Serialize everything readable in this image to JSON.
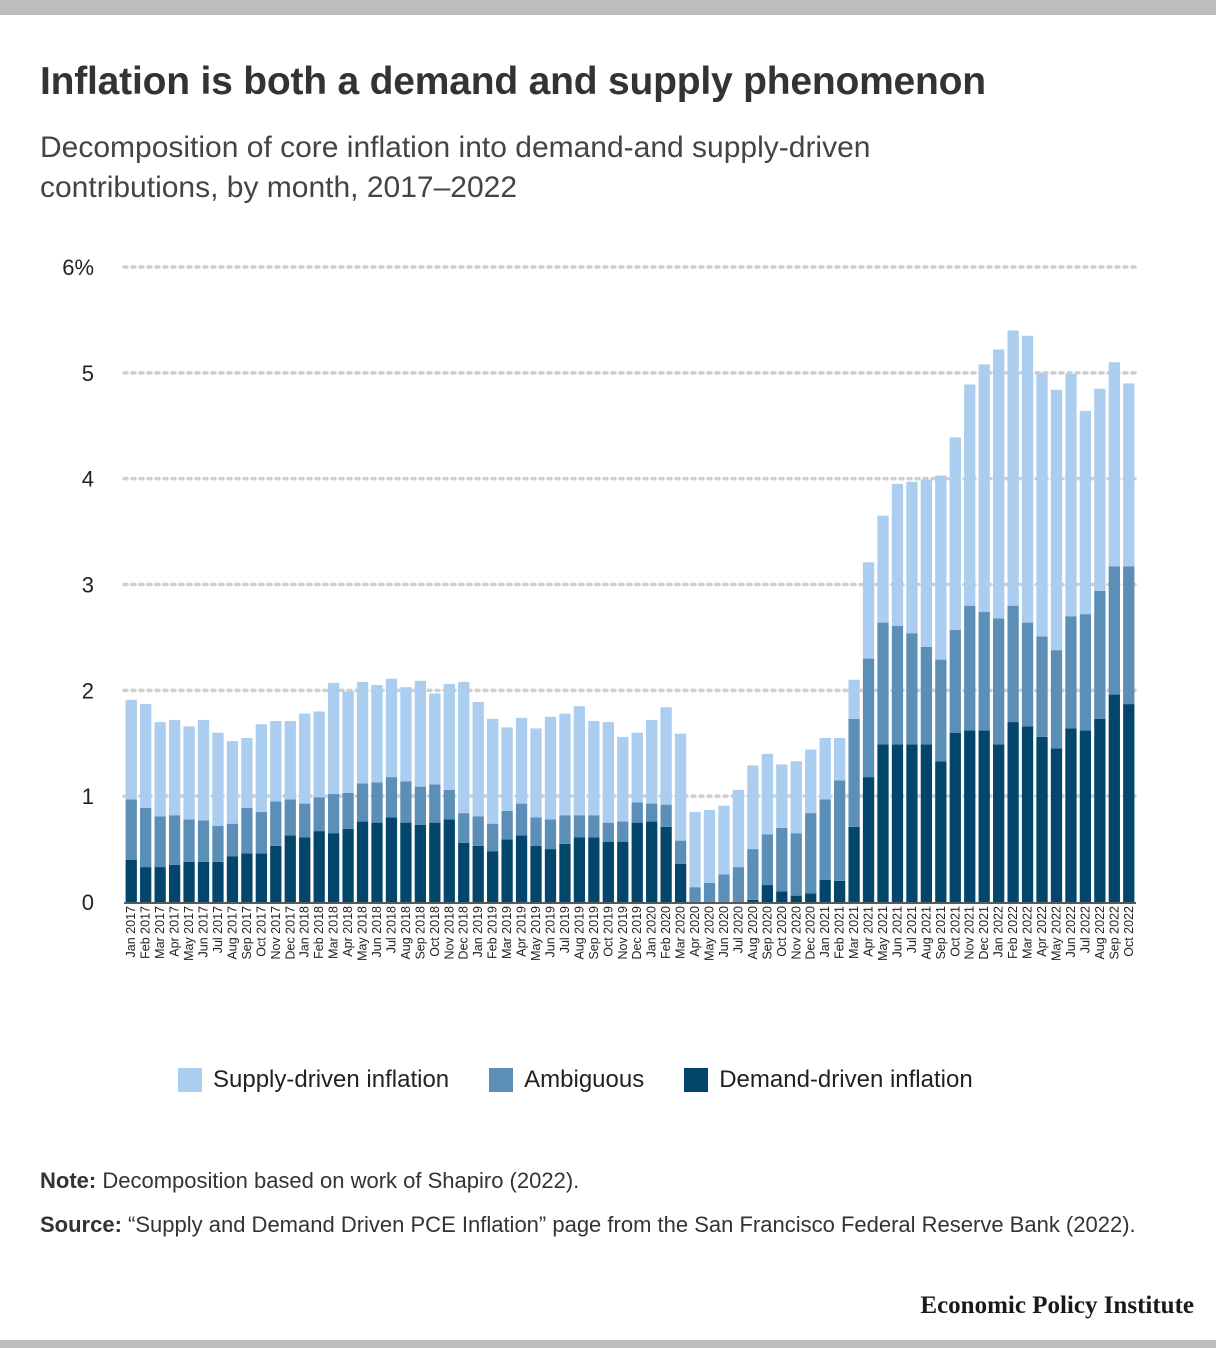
{
  "title": "Inflation is both a demand and supply phenomenon",
  "subtitle": "Decomposition of core inflation into demand-and supply-driven contributions, by month, 2017–2022",
  "note_label": "Note:",
  "note_text": " Decomposition based on work of Shapiro (2022).",
  "source_label": "Source:",
  "source_text": " “Supply and Demand Driven PCE Inflation” page from the San Francisco Federal Reserve Bank (2022).",
  "brand": "Economic Policy Institute",
  "colors": {
    "supply": "#abcdef",
    "ambiguous": "#5b8fb8",
    "demand": "#03466b",
    "grid": "#cfcfcf"
  },
  "legend": [
    {
      "label": "Supply-driven inflation",
      "color": "#abcdef"
    },
    {
      "label": "Ambiguous",
      "color": "#5b8fb8"
    },
    {
      "label": "Demand-driven inflation",
      "color": "#03466b"
    }
  ],
  "chart_data": {
    "type": "bar",
    "stacked": true,
    "grid": true,
    "legend_position": "bottom",
    "ylim": [
      0,
      6
    ],
    "yticks": [
      0,
      1,
      2,
      3,
      4,
      5,
      6
    ],
    "ytick_labels": [
      "0",
      "1",
      "2",
      "3",
      "4",
      "5",
      "6%"
    ],
    "categories": [
      "Jan 2017",
      "Feb 2017",
      "Mar 2017",
      "Apr 2017",
      "May 2017",
      "Jun 2017",
      "Jul 2017",
      "Aug 2017",
      "Sep 2017",
      "Oct 2017",
      "Nov 2017",
      "Dec 2017",
      "Jan 2018",
      "Feb 2018",
      "Mar 2018",
      "Apr 2018",
      "May 2018",
      "Jun 2018",
      "Jul 2018",
      "Aug 2018",
      "Sep 2018",
      "Oct 2018",
      "Nov 2018",
      "Dec 2018",
      "Jan 2019",
      "Feb 2019",
      "Mar 2019",
      "Apr 2019",
      "May 2019",
      "Jun 2019",
      "Jul 2019",
      "Aug 2019",
      "Sep 2019",
      "Oct 2019",
      "Nov 2019",
      "Dec 2019",
      "Jan 2020",
      "Feb 2020",
      "Mar 2020",
      "Apr 2020",
      "May 2020",
      "Jun 2020",
      "Jul 2020",
      "Aug 2020",
      "Sep 2020",
      "Oct 2020",
      "Nov 2020",
      "Dec 2020",
      "Jan 2021",
      "Feb 2021",
      "Mar 2021",
      "Apr 2021",
      "May 2021",
      "Jun 2021",
      "Jul 2021",
      "Aug 2021",
      "Sep 2021",
      "Oct 2021",
      "Nov 2021",
      "Dec 2021",
      "Jan 2022",
      "Feb 2022",
      "Mar 2022",
      "Apr 2022",
      "May 2022",
      "Jun 2022",
      "Jul 2022",
      "Aug 2022",
      "Sep 2022",
      "Oct 2022"
    ],
    "series": [
      {
        "name": "Demand-driven inflation",
        "values": [
          0.4,
          0.33,
          0.33,
          0.35,
          0.38,
          0.38,
          0.38,
          0.43,
          0.46,
          0.46,
          0.53,
          0.63,
          0.61,
          0.67,
          0.65,
          0.69,
          0.76,
          0.75,
          0.8,
          0.75,
          0.73,
          0.75,
          0.78,
          0.56,
          0.53,
          0.48,
          0.59,
          0.63,
          0.53,
          0.5,
          0.55,
          0.61,
          0.61,
          0.57,
          0.57,
          0.75,
          0.76,
          0.71,
          0.36,
          0.0,
          0.0,
          0.0,
          0.0,
          0.02,
          0.16,
          0.1,
          0.06,
          0.08,
          0.21,
          0.2,
          0.71,
          1.18,
          1.49,
          1.49,
          1.49,
          1.49,
          1.33,
          1.6,
          1.62,
          1.62,
          1.49,
          1.7,
          1.66,
          1.56,
          1.45,
          1.64,
          1.62,
          1.73,
          1.96,
          1.87
        ]
      },
      {
        "name": "Ambiguous",
        "values": [
          0.57,
          0.56,
          0.48,
          0.47,
          0.4,
          0.39,
          0.34,
          0.31,
          0.43,
          0.39,
          0.42,
          0.34,
          0.32,
          0.32,
          0.37,
          0.34,
          0.36,
          0.38,
          0.38,
          0.39,
          0.36,
          0.36,
          0.28,
          0.28,
          0.28,
          0.26,
          0.27,
          0.3,
          0.27,
          0.28,
          0.27,
          0.21,
          0.21,
          0.18,
          0.19,
          0.19,
          0.17,
          0.21,
          0.22,
          0.14,
          0.18,
          0.26,
          0.33,
          0.48,
          0.48,
          0.6,
          0.59,
          0.76,
          0.76,
          0.95,
          1.02,
          1.12,
          1.15,
          1.12,
          1.05,
          0.92,
          0.96,
          0.97,
          1.18,
          1.12,
          1.19,
          1.1,
          0.98,
          0.95,
          0.93,
          1.06,
          1.1,
          1.21,
          1.21,
          1.3
        ]
      },
      {
        "name": "Supply-driven inflation",
        "values": [
          0.94,
          0.98,
          0.89,
          0.9,
          0.88,
          0.95,
          0.88,
          0.78,
          0.66,
          0.83,
          0.76,
          0.74,
          0.85,
          0.81,
          1.05,
          0.96,
          0.96,
          0.92,
          0.93,
          0.89,
          1.0,
          0.86,
          1.0,
          1.24,
          1.08,
          0.99,
          0.79,
          0.81,
          0.84,
          0.97,
          0.96,
          1.03,
          0.89,
          0.95,
          0.8,
          0.66,
          0.79,
          0.92,
          1.01,
          0.71,
          0.69,
          0.65,
          0.73,
          0.79,
          0.76,
          0.6,
          0.68,
          0.6,
          0.58,
          0.4,
          0.37,
          0.91,
          1.01,
          1.34,
          1.43,
          1.58,
          1.74,
          1.82,
          2.09,
          2.34,
          2.54,
          2.6,
          2.71,
          2.49,
          2.46,
          2.29,
          1.92,
          1.91,
          1.93,
          1.73
        ]
      }
    ]
  }
}
